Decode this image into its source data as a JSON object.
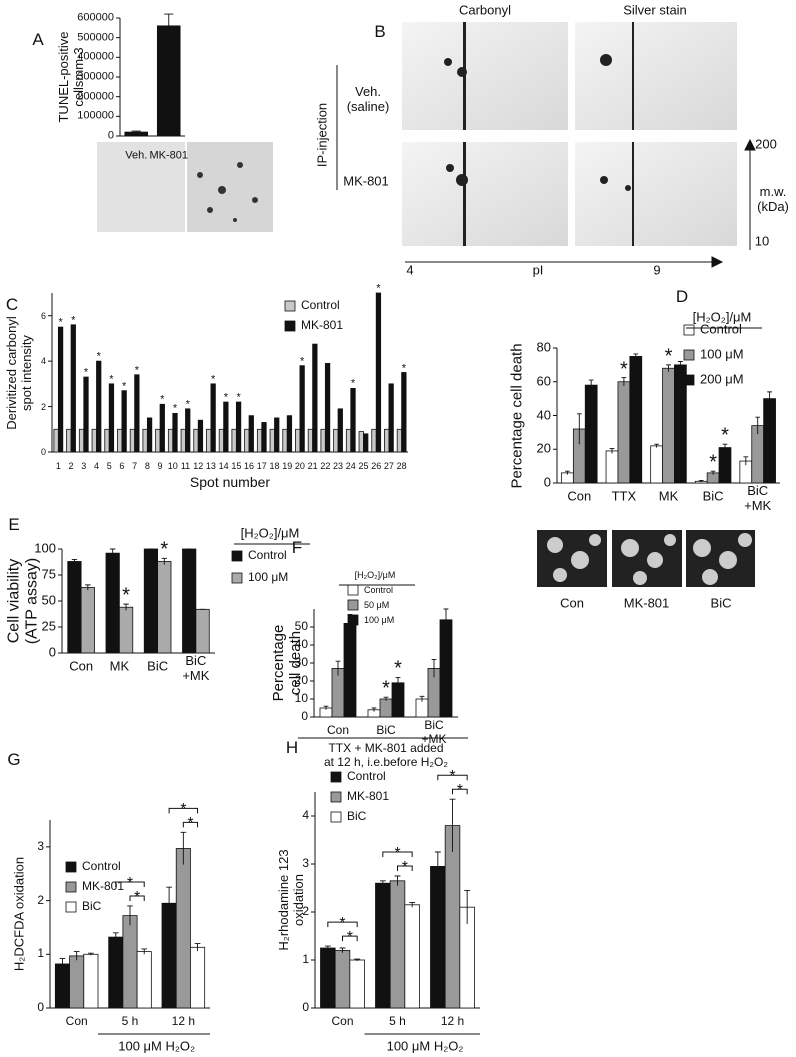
{
  "chart_data": [
    {
      "type": "bar",
      "panel": "A",
      "ylabel": "TUNEL-positive\ncellsmm-3",
      "categories": [
        "Veh.",
        "MK-801"
      ],
      "series": [
        {
          "color": "#111111",
          "values": [
            20000,
            560000
          ],
          "errors": [
            5000,
            60000
          ]
        }
      ],
      "ylim": [
        0,
        600000
      ],
      "yticks": [
        0,
        100000,
        200000,
        300000,
        400000,
        500000,
        600000
      ]
    },
    {
      "type": "bar",
      "panel": "C",
      "ylabel": "Derivitized carbonyl\nspot intensity",
      "xlabel": "Spot number",
      "categories": [
        "1",
        "2",
        "3",
        "4",
        "5",
        "6",
        "7",
        "8",
        "9",
        "10",
        "11",
        "12",
        "13",
        "14",
        "15",
        "16",
        "17",
        "18",
        "19",
        "20",
        "21",
        "22",
        "23",
        "24",
        "25",
        "26",
        "27",
        "28"
      ],
      "series": [
        {
          "name": "Control",
          "color": "#c8c8c8",
          "values": [
            1,
            1,
            1,
            1,
            1,
            1,
            1,
            1,
            1,
            1,
            1,
            1,
            1,
            1,
            1,
            1,
            1,
            1,
            1,
            1,
            1,
            1,
            1,
            1,
            0.9,
            1,
            1,
            1
          ]
        },
        {
          "name": "MK-801",
          "color": "#111111",
          "values": [
            5.5,
            5.6,
            3.3,
            4.0,
            3.0,
            2.7,
            3.4,
            1.5,
            2.1,
            1.7,
            1.9,
            1.4,
            3.0,
            2.2,
            2.2,
            1.6,
            1.3,
            1.5,
            1.6,
            3.8,
            4.75,
            3.9,
            1.9,
            2.8,
            0.8,
            7.0,
            3.0,
            3.5
          ]
        }
      ],
      "star": "*",
      "stars": [
        [
          0,
          1
        ],
        [
          1,
          1
        ],
        [
          2,
          1
        ],
        [
          3,
          1
        ],
        [
          4,
          1
        ],
        [
          5,
          1
        ],
        [
          6,
          1
        ],
        [
          8,
          1
        ],
        [
          9,
          1
        ],
        [
          10,
          1
        ],
        [
          12,
          1
        ],
        [
          13,
          1
        ],
        [
          14,
          1
        ],
        [
          19,
          1
        ],
        [
          23,
          1
        ],
        [
          25,
          1
        ],
        [
          27,
          1
        ]
      ],
      "ylim": [
        0,
        7
      ],
      "yticks": [
        0,
        2,
        4,
        6
      ]
    },
    {
      "type": "bar",
      "panel": "D",
      "ylabel": "Percentage cell death",
      "legend_title": "[H₂O₂]/μM",
      "categories": [
        "Con",
        "TTX",
        "MK",
        "BiC",
        "BiC\n+MK"
      ],
      "series": [
        {
          "name": "Control",
          "color": "#ffffff",
          "values": [
            6,
            19,
            22,
            1,
            13
          ],
          "errors": [
            1,
            1.5,
            1,
            0.5,
            2.5
          ]
        },
        {
          "name": "100 μM",
          "color": "#999999",
          "values": [
            32,
            60,
            68,
            6,
            34
          ],
          "errors": [
            9,
            2.5,
            2,
            1,
            5
          ]
        },
        {
          "name": "200 μM",
          "color": "#111111",
          "values": [
            58,
            75,
            70,
            21,
            50
          ],
          "errors": [
            3,
            1.5,
            2,
            2,
            4
          ]
        }
      ],
      "star": "*",
      "stars": [
        [
          1,
          1
        ],
        [
          2,
          1
        ],
        [
          3,
          1
        ],
        [
          3,
          2
        ]
      ],
      "ylim": [
        0,
        80
      ],
      "yticks": [
        0,
        20,
        40,
        60,
        80
      ],
      "image_labels": [
        "Con",
        "MK-801",
        "BiC"
      ]
    },
    {
      "type": "bar",
      "panel": "E",
      "ylabel": "Cell viability\n(ATP assay)",
      "legend_title": "[H₂O₂]/μM",
      "categories": [
        "Con",
        "MK",
        "BiC",
        "BiC\n+MK"
      ],
      "series": [
        {
          "name": "Control",
          "color": "#111111",
          "values": [
            88,
            96,
            100,
            100
          ],
          "errors": [
            2,
            4,
            0,
            0
          ]
        },
        {
          "name": "100 μM",
          "color": "#aaaaaa",
          "values": [
            63,
            44,
            88,
            42
          ],
          "errors": [
            2.5,
            3,
            3,
            0
          ]
        }
      ],
      "star": "*",
      "stars": [
        [
          1,
          1
        ],
        [
          2,
          1
        ]
      ],
      "ylim": [
        0,
        100
      ],
      "yticks": [
        0,
        25,
        50,
        75,
        100
      ]
    },
    {
      "type": "bar",
      "panel": "F",
      "ylabel": "Percentage\ncell death",
      "legend_title": "[H₂O₂]/μM",
      "note": "TTX + MK-801 added\nat 12 h, i.e.before H₂O₂",
      "categories": [
        "Con",
        "BiC",
        "BiC\n+MK"
      ],
      "series": [
        {
          "name": "Control",
          "color": "#ffffff",
          "values": [
            5,
            4,
            10
          ],
          "errors": [
            1,
            1,
            1.5
          ]
        },
        {
          "name": "50 μM",
          "color": "#999999",
          "values": [
            27,
            10,
            27
          ],
          "errors": [
            4,
            1,
            5
          ]
        },
        {
          "name": "100 μM",
          "color": "#111111",
          "values": [
            52,
            19,
            54
          ],
          "errors": [
            5,
            3,
            6
          ]
        }
      ],
      "star": "*",
      "stars": [
        [
          1,
          1
        ],
        [
          1,
          2
        ]
      ],
      "ylim": [
        0,
        60
      ],
      "yticks": [
        0,
        10,
        20,
        30,
        40,
        50
      ]
    },
    {
      "type": "bar",
      "panel": "G",
      "ylabel": "H₂DCFDA oxidation",
      "xlabel": "100 μM H₂O₂",
      "categories": [
        "Con",
        "5 h",
        "12 h"
      ],
      "series": [
        {
          "name": "Control",
          "color": "#111111",
          "values": [
            0.82,
            1.32,
            1.95
          ],
          "errors": [
            0.1,
            0.08,
            0.3
          ]
        },
        {
          "name": "MK-801",
          "color": "#999999",
          "values": [
            0.97,
            1.72,
            2.97
          ],
          "errors": [
            0.08,
            0.18,
            0.3
          ]
        },
        {
          "name": "BiC",
          "color": "#ffffff",
          "values": [
            1.0,
            1.05,
            1.13
          ],
          "errors": [
            0.02,
            0.05,
            0.07
          ]
        }
      ],
      "star": "*",
      "brackets": [
        [
          1,
          0,
          2
        ],
        [
          1,
          1,
          2
        ],
        [
          2,
          0,
          2
        ],
        [
          2,
          1,
          2
        ]
      ],
      "ylim": [
        0,
        3.5
      ],
      "yticks": [
        0,
        1,
        2,
        3
      ]
    },
    {
      "type": "bar",
      "panel": "H",
      "ylabel": "H₂rhodamine 123\noxidation",
      "xlabel": "100 μM H₂O₂",
      "categories": [
        "Con",
        "5 h",
        "12 h"
      ],
      "series": [
        {
          "name": "Control",
          "color": "#111111",
          "values": [
            1.25,
            2.6,
            2.95
          ],
          "errors": [
            0.04,
            0.05,
            0.3
          ]
        },
        {
          "name": "MK-801",
          "color": "#999999",
          "values": [
            1.2,
            2.65,
            3.8
          ],
          "errors": [
            0.05,
            0.1,
            0.55
          ]
        },
        {
          "name": "BiC",
          "color": "#ffffff",
          "values": [
            1.0,
            2.15,
            2.1
          ],
          "errors": [
            0.02,
            0.05,
            0.35
          ]
        }
      ],
      "star": "*",
      "brackets": [
        [
          0,
          0,
          2
        ],
        [
          0,
          1,
          2
        ],
        [
          1,
          0,
          2
        ],
        [
          1,
          1,
          2
        ],
        [
          2,
          0,
          2
        ],
        [
          2,
          1,
          2
        ]
      ],
      "ylim": [
        0,
        4.5
      ],
      "yticks": [
        0,
        1,
        2,
        3,
        4
      ]
    }
  ],
  "panel_b": {
    "panel": "B",
    "columns": [
      "Carbonyl",
      "Silver stain"
    ],
    "group": "IP-injection",
    "rows": [
      "Veh.\n(saline)",
      "MK-801"
    ],
    "mw_label": "m.w.\n(kDa)",
    "mw_ticks": [
      "200",
      "10"
    ],
    "pi_label": "pI",
    "pi_ticks": [
      "4",
      "9"
    ]
  }
}
